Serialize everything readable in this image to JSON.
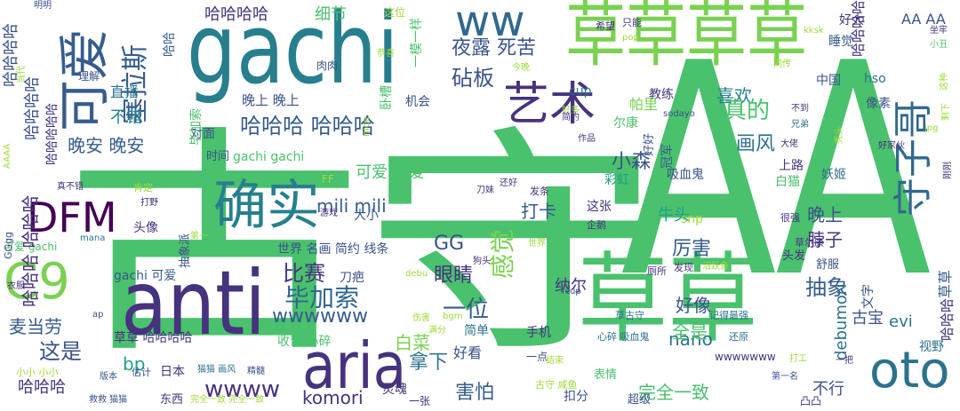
{
  "palette": {
    "dark_purple": "#440154",
    "indigo": "#46327e",
    "blue": "#365c8d",
    "teal": "#277f8e",
    "green_teal": "#1fa187",
    "green": "#4ac16d",
    "lime": "#a0da39",
    "yellow": "#fde725"
  },
  "words": [
    {
      "text": "AA",
      "color": "#4ac16d",
      "size": 330
    },
    {
      "text": "古守",
      "color": "#4ac16d",
      "size": 270
    },
    {
      "text": "草草",
      "color": "#4ac16d",
      "size": 110
    },
    {
      "text": "草草草草",
      "color": "#7ad151",
      "size": 80
    },
    {
      "text": "gachi",
      "color": "#277f8e",
      "size": 110
    },
    {
      "text": "anti",
      "color": "#46327e",
      "size": 100
    },
    {
      "text": "aria",
      "color": "#46327e",
      "size": 72
    },
    {
      "text": "oto",
      "color": "#2c728e",
      "size": 56
    },
    {
      "text": "确实",
      "color": "#277f8e",
      "size": 60
    },
    {
      "text": "可爱",
      "color": "#365c8d",
      "size": 58
    },
    {
      "text": "DFM",
      "color": "#440154",
      "size": 46
    },
    {
      "text": "C9",
      "color": "#7ad151",
      "size": 56
    },
    {
      "text": "ww",
      "color": "#31688e",
      "size": 48
    },
    {
      "text": "艺术",
      "color": "#46327e",
      "size": 52
    },
    {
      "text": "守子哥",
      "color": "#31688e",
      "size": 44
    },
    {
      "text": "塞拉斯",
      "color": "#365c8d",
      "size": 30
    },
    {
      "text": "哈哈哈哈",
      "color": "#46327e",
      "size": 18
    },
    {
      "text": "哈哈哈 哈哈哈",
      "color": "#365c8d",
      "size": 24
    },
    {
      "text": "晚上 晚上",
      "color": "#3b528b",
      "size": 15
    },
    {
      "text": "晚安 晚安",
      "color": "#365c8d",
      "size": 20
    },
    {
      "text": "不错",
      "color": "#277f8e",
      "size": 18
    },
    {
      "text": "直播",
      "color": "#2c728e",
      "size": 16
    },
    {
      "text": "细节",
      "color": "#4ac16d",
      "size": 18
    },
    {
      "text": "夜露 死苦",
      "color": "#3b528b",
      "size": 22
    },
    {
      "text": "砧板",
      "color": "#3b528b",
      "size": 24
    },
    {
      "text": "喜欢",
      "color": "#277f8e",
      "size": 20
    },
    {
      "text": "真的",
      "color": "#4ac16d",
      "size": 26
    },
    {
      "text": "画风",
      "color": "#2c728e",
      "size": 22
    },
    {
      "text": "小森",
      "color": "#3b528b",
      "size": 22
    },
    {
      "text": "可爱 可爱",
      "color": "#4ac16d",
      "size": 18
    },
    {
      "text": "mili mili",
      "color": "#365c8d",
      "size": 20
    },
    {
      "text": "GG",
      "color": "#3b528b",
      "size": 22
    },
    {
      "text": "比赛",
      "color": "#46327e",
      "size": 24
    },
    {
      "text": "毕加索",
      "color": "#31688e",
      "size": 28
    },
    {
      "text": "眼睛",
      "color": "#46327e",
      "size": 22
    },
    {
      "text": "感觉",
      "color": "#7ad151",
      "size": 28
    },
    {
      "text": "一位",
      "color": "#365c8d",
      "size": 26
    },
    {
      "text": "打卡",
      "color": "#365c8d",
      "size": 20
    },
    {
      "text": "牛头",
      "color": "#1fa187",
      "size": 18
    },
    {
      "text": "厉害",
      "color": "#365c8d",
      "size": 22
    },
    {
      "text": "晚上",
      "color": "#3b528b",
      "size": 20
    },
    {
      "text": "脖子",
      "color": "#46327e",
      "size": 20
    },
    {
      "text": "抽象",
      "color": "#365c8d",
      "size": 24
    },
    {
      "text": "这是",
      "color": "#3b528b",
      "size": 24
    },
    {
      "text": "麦当劳",
      "color": "#365c8d",
      "size": 20
    },
    {
      "text": "wwwwww",
      "color": "#365c8d",
      "size": 22
    },
    {
      "text": "纳尔",
      "color": "#46327e",
      "size": 18
    },
    {
      "text": "好像",
      "color": "#3b528b",
      "size": 20
    },
    {
      "text": "nano",
      "color": "#2c728e",
      "size": 20
    },
    {
      "text": "evi",
      "color": "#2c728e",
      "size": 18
    },
    {
      "text": "全是",
      "color": "#4ac16d",
      "size": 20
    },
    {
      "text": "白菜",
      "color": "#7ad151",
      "size": 20
    },
    {
      "text": "拿下",
      "color": "#2c728e",
      "size": 22
    },
    {
      "text": "wwww",
      "color": "#46327e",
      "size": 26
    },
    {
      "text": "komori",
      "color": "#46327e",
      "size": 20
    },
    {
      "text": "害怕",
      "color": "#365c8d",
      "size": 22
    },
    {
      "text": "完全一致",
      "color": "#4ac16d",
      "size": 20
    },
    {
      "text": "哈哈哈",
      "color": "#46327e",
      "size": 18
    },
    {
      "text": "bp",
      "color": "#1fa187",
      "size": 20
    },
    {
      "text": "不行",
      "color": "#3b528b",
      "size": 18
    },
    {
      "text": "debumori",
      "color": "#2c728e",
      "size": 18
    },
    {
      "text": "古宝",
      "color": "#3b528b",
      "size": 18
    },
    {
      "text": "视野",
      "color": "#2c728e",
      "size": 14
    },
    {
      "text": "手机",
      "color": "#46327e",
      "size": 14
    },
    {
      "text": "简单",
      "color": "#2c728e",
      "size": 14
    },
    {
      "text": "好看",
      "color": "#3b528b",
      "size": 16
    },
    {
      "text": "收留 心碎",
      "color": "#4ac16d",
      "size": 14
    },
    {
      "text": "草草 哈哈哈哈",
      "color": "#46327e",
      "size": 14
    },
    {
      "text": "gachi 可爱",
      "color": "#365c8d",
      "size": 14
    },
    {
      "text": "世界 名画 简约 线条",
      "color": "#3b528b",
      "size": 14
    },
    {
      "text": "头像",
      "color": "#46327e",
      "size": 14
    },
    {
      "text": "大小",
      "color": "#3b528b",
      "size": 14
    },
    {
      "text": "刀疤",
      "color": "#3b528b",
      "size": 14
    },
    {
      "text": "这张",
      "color": "#46327e",
      "size": 14
    },
    {
      "text": "cup",
      "color": "#2c728e",
      "size": 14
    },
    {
      "text": "教练",
      "color": "#46327e",
      "size": 14
    },
    {
      "text": "中国",
      "color": "#3b528b",
      "size": 14
    },
    {
      "text": "hso",
      "color": "#2c728e",
      "size": 14
    },
    {
      "text": "像素",
      "color": "#3b528b",
      "size": 14
    },
    {
      "text": "睡觉",
      "color": "#365c8d",
      "size": 14
    },
    {
      "text": "好大",
      "color": "#46327e",
      "size": 14
    },
    {
      "text": "帕里",
      "color": "#7ad151",
      "size": 16
    },
    {
      "text": "尔康",
      "color": "#4ac16d",
      "size": 14
    },
    {
      "text": "机会",
      "color": "#3b528b",
      "size": 14
    },
    {
      "text": "卧槽",
      "color": "#4ac16d",
      "size": 14
    },
    {
      "text": "对面",
      "color": "#3b528b",
      "size": 14
    },
    {
      "text": "时间",
      "color": "#3b528b",
      "size": 13
    },
    {
      "text": "gachi gachi",
      "color": "#4ac16d",
      "size": 14
    },
    {
      "text": "肉肉",
      "color": "#3b528b",
      "size": 12
    },
    {
      "text": "好好",
      "color": "#3b528b",
      "size": 13
    },
    {
      "text": "上路",
      "color": "#46327e",
      "size": 14
    },
    {
      "text": "吸血鬼",
      "color": "#3b528b",
      "size": 14
    },
    {
      "text": "妖姬",
      "color": "#2c728e",
      "size": 14
    },
    {
      "text": "白猫",
      "color": "#4ac16d",
      "size": 14
    },
    {
      "text": "头发",
      "color": "#46327e",
      "size": 13
    },
    {
      "text": "舒服",
      "color": "#3b528b",
      "size": 13
    },
    {
      "text": "彩虹",
      "color": "#1fa187",
      "size": 14
    },
    {
      "text": "snp",
      "color": "#a0da39",
      "size": 14
    },
    {
      "text": "表情",
      "color": "#4ac16d",
      "size": 13
    },
    {
      "text": "一点",
      "color": "#3b528b",
      "size": 12
    },
    {
      "text": "超级",
      "color": "#3b528b",
      "size": 13
    },
    {
      "text": "扣分",
      "color": "#3b528b",
      "size": 14
    },
    {
      "text": "灵魂",
      "color": "#46327e",
      "size": 14
    },
    {
      "text": "一张",
      "color": "#46327e",
      "size": 12
    },
    {
      "text": "东西",
      "color": "#46327e",
      "size": 13
    },
    {
      "text": "日本",
      "color": "#46327e",
      "size": 14
    },
    {
      "text": "凸凸",
      "color": "#46327e",
      "size": 12
    },
    {
      "text": "wwwwwww",
      "color": "#46327e",
      "size": 12
    },
    {
      "text": "心碎 吸血鬼",
      "color": "#2c728e",
      "size": 11
    },
    {
      "text": "古守 咸鱼",
      "color": "#a0da39",
      "size": 11
    },
    {
      "text": "还原",
      "color": "#2c728e",
      "size": 11
    },
    {
      "text": "打工",
      "color": "#a0da39",
      "size": 10
    },
    {
      "text": "记得最强",
      "color": "#2c728e",
      "size": 11
    },
    {
      "text": "草古守",
      "color": "#2c728e",
      "size": 11
    },
    {
      "text": "结束",
      "color": "#a0da39",
      "size": 10
    },
    {
      "text": "bgm",
      "color": "#a0da39",
      "size": 10
    },
    {
      "text": "猫猫 画风",
      "color": "#2c728e",
      "size": 10
    },
    {
      "text": "估计",
      "color": "#3b528b",
      "size": 11
    },
    {
      "text": "完全一致 完全一致",
      "color": "#a0da39",
      "size": 10
    },
    {
      "text": "哈哈哈哈",
      "color": "#46327e",
      "size": 16
    },
    {
      "text": "AA AA",
      "color": "#3b528b",
      "size": 16
    },
    {
      "text": "一模一样",
      "color": "#4ac16d",
      "size": 14
    },
    {
      "text": "这位",
      "color": "#a0da39",
      "size": 12
    },
    {
      "text": "希望",
      "color": "#46327e",
      "size": 11
    },
    {
      "text": "只能",
      "color": "#46327e",
      "size": 11
    },
    {
      "text": "同传",
      "color": "#a0da39",
      "size": 10
    },
    {
      "text": "小丑",
      "color": "#4ac16d",
      "size": 10
    },
    {
      "text": "坐牢",
      "color": "#46327e",
      "size": 10
    },
    {
      "text": "pop",
      "color": "#a0da39",
      "size": 10
    },
    {
      "text": "kksk",
      "color": "#a0da39",
      "size": 10
    },
    {
      "text": "今晚",
      "color": "#a0da39",
      "size": 10
    },
    {
      "text": "好多",
      "color": "#a0da39",
      "size": 10
    },
    {
      "text": "sodayo",
      "color": "#3b528b",
      "size": 10
    },
    {
      "text": "作品",
      "color": "#46327e",
      "size": 10
    },
    {
      "text": "简约",
      "color": "#46327e",
      "size": 10
    },
    {
      "text": "不到",
      "color": "#46327e",
      "size": 10
    },
    {
      "text": "兄弟",
      "color": "#2c728e",
      "size": 10
    },
    {
      "text": "好家伙",
      "color": "#46327e",
      "size": 10
    },
    {
      "text": "很强",
      "color": "#46327e",
      "size": 11
    },
    {
      "text": "草尔康",
      "color": "#46327e",
      "size": 11
    },
    {
      "text": "厕所",
      "color": "#46327e",
      "size": 11
    },
    {
      "text": "发现",
      "color": "#46327e",
      "size": 11
    },
    {
      "text": "沼跃鱼",
      "color": "#a0da39",
      "size": 10
    },
    {
      "text": "企鹅",
      "color": "#46327e",
      "size": 11
    },
    {
      "text": "刀妹",
      "color": "#46327e",
      "size": 10
    },
    {
      "text": "发条",
      "color": "#46327e",
      "size": 11
    },
    {
      "text": "还好",
      "color": "#46327e",
      "size": 10
    },
    {
      "text": "游戏",
      "color": "#46327e",
      "size": 10
    },
    {
      "text": "打野",
      "color": "#46327e",
      "size": 10
    },
    {
      "text": "肯定",
      "color": "#a0da39",
      "size": 11
    },
    {
      "text": "真不错",
      "color": "#46327e",
      "size": 10
    },
    {
      "text": "可爱 gachi",
      "color": "#4ac16d",
      "size": 12
    },
    {
      "text": "mana",
      "color": "#2c728e",
      "size": 10
    },
    {
      "text": "fcup",
      "color": "#3b528b",
      "size": 10
    },
    {
      "text": "狗头",
      "color": "#46327e",
      "size": 10
    },
    {
      "text": "debu",
      "color": "#a0da39",
      "size": 10
    },
    {
      "text": "小小 小小",
      "color": "#a0da39",
      "size": 11
    },
    {
      "text": "救救 猫猫",
      "color": "#3b528b",
      "size": 10
    },
    {
      "text": "版本",
      "color": "#3b528b",
      "size": 10
    },
    {
      "text": "精髓",
      "color": "#3b528b",
      "size": 10
    },
    {
      "text": "FF",
      "color": "#a0da39",
      "size": 12
    },
    {
      "text": "理解",
      "color": "#3b528b",
      "size": 12
    },
    {
      "text": "明明",
      "color": "#3b528b",
      "size": 10
    },
    {
      "text": "恭喜",
      "color": "#a0da39",
      "size": 10
    },
    {
      "text": "第一名",
      "color": "#3b528b",
      "size": 10
    },
    {
      "text": "衣服",
      "color": "#46327e",
      "size": 10
    },
    {
      "text": "ap",
      "color": "#3b528b",
      "size": 10
    },
    {
      "text": "伤害",
      "color": "#a0da39",
      "size": 10
    },
    {
      "text": "满分",
      "color": "#a0da39",
      "size": 10
    },
    {
      "text": "第一",
      "color": "#a0da39",
      "size": 10
    },
    {
      "text": "世界",
      "color": "#a0da39",
      "size": 10
    },
    {
      "text": "一把",
      "color": "#46327e",
      "size": 10
    },
    {
      "text": "哈哈哈 哈哈哈",
      "color": "#46327e",
      "size": 20
    },
    {
      "text": "哈哈哈哈",
      "color": "#3b528b",
      "size": 18
    },
    {
      "text": "哈哈哈哈哈",
      "color": "#46327e",
      "size": 14
    },
    {
      "text": "哈哈哈哈",
      "color": "#3b528b",
      "size": 18
    },
    {
      "text": "草草",
      "color": "#365c8d",
      "size": 16
    },
    {
      "text": "哈哈哈",
      "color": "#46327e",
      "size": 16
    },
    {
      "text": "抽象派",
      "color": "#3b528b",
      "size": 13
    },
    {
      "text": "GGgg",
      "color": "#3b528b",
      "size": 11
    },
    {
      "text": "毕加索",
      "color": "#4ac16d",
      "size": 14
    },
    {
      "text": "哈哈",
      "color": "#365c8d",
      "size": 14
    },
    {
      "text": "AAAA",
      "color": "#a0da39",
      "size": 10
    },
    {
      "text": "nice",
      "color": "#a0da39",
      "size": 11
    },
    {
      "text": "文字",
      "color": "#3b528b",
      "size": 14
    },
    {
      "text": "冠军",
      "color": "#365c8d",
      "size": 14
    },
    {
      "text": "这种",
      "color": "#a0da39",
      "size": 10
    },
    {
      "text": "剩下",
      "color": "#a0da39",
      "size": 10
    },
    {
      "text": "当代",
      "color": "#a0da39",
      "size": 10
    },
    {
      "text": "大佬",
      "color": "#46327e",
      "size": 10
    },
    {
      "text": "秃头",
      "color": "#a0da39",
      "size": 10
    },
    {
      "text": "jpg",
      "color": "#a0da39",
      "size": 10
    },
    {
      "text": "刚刚",
      "color": "#46327e",
      "size": 10
    }
  ]
}
